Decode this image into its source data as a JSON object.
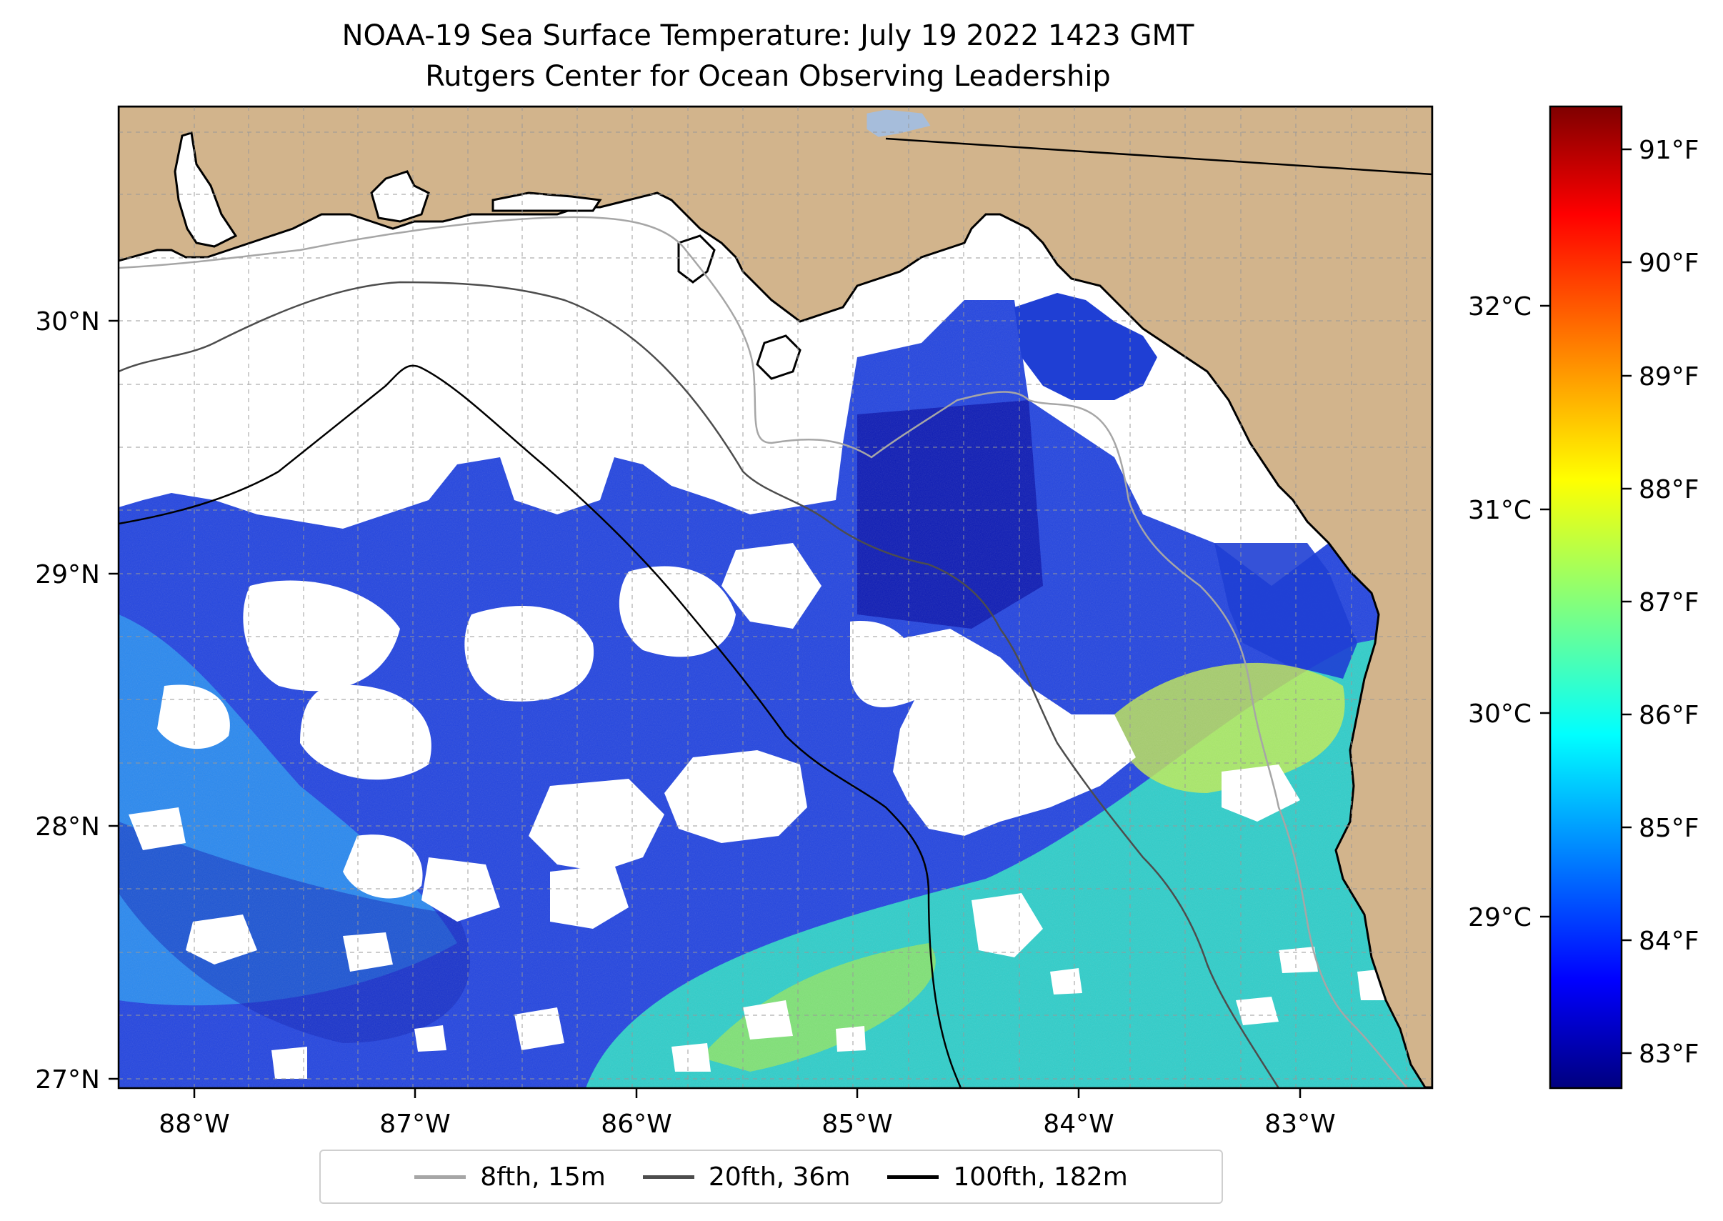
{
  "title": {
    "line1": "NOAA-19 Sea Surface Temperature: July 19 2022 1423 GMT",
    "line2": "Rutgers Center for Ocean Observing Leadership"
  },
  "map": {
    "extent": {
      "lon": [
        -88.35,
        -82.4
      ],
      "lat": [
        26.95,
        30.85
      ]
    },
    "land_color": "#d2b48c",
    "cloud_mask_color": "#ffffff",
    "gridlines": "dashed",
    "x_tick_labels": [
      "88°W",
      "87°W",
      "86°W",
      "85°W",
      "84°W",
      "83°W"
    ],
    "x_tick_values": [
      -88,
      -87,
      -86,
      -85,
      -84,
      -83
    ],
    "y_tick_labels": [
      "30°N",
      "29°N",
      "28°N",
      "27°N"
    ],
    "y_tick_values": [
      30,
      29,
      28,
      27
    ]
  },
  "colorbar": {
    "colormap": "jet",
    "fahrenheit_labels": [
      "91°F",
      "90°F",
      "89°F",
      "88°F",
      "87°F",
      "86°F",
      "85°F",
      "84°F",
      "83°F"
    ],
    "fahrenheit_values": [
      91,
      90,
      89,
      88,
      87,
      86,
      85,
      84,
      83
    ],
    "celsius_labels": [
      "32°C",
      "31°C",
      "30°C",
      "29°C"
    ],
    "celsius_values": [
      32,
      31,
      30,
      29
    ],
    "range_f": [
      82.7,
      91.4
    ]
  },
  "legend": {
    "placement": "bottom-center",
    "items": [
      {
        "label": "8fth, 15m",
        "color": "#a6a6a6"
      },
      {
        "label": "20fth, 36m",
        "color": "#4d4d4d"
      },
      {
        "label": "100fth, 182m",
        "color": "#000000"
      }
    ]
  }
}
